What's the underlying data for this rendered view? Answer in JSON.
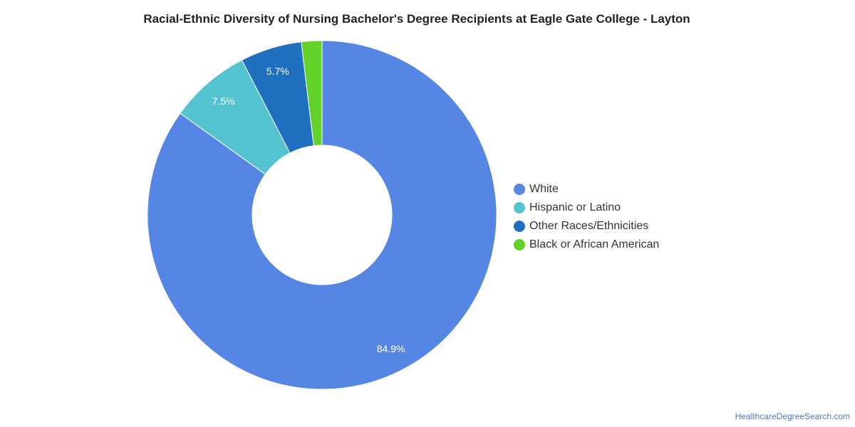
{
  "chart_data": {
    "type": "pie",
    "title": "Racial-Ethnic Diversity of Nursing Bachelor's Degree Recipients at Eagle Gate College - Layton",
    "categories": [
      "White",
      "Hispanic or Latino",
      "Other Races/Ethnicities",
      "Black or African American"
    ],
    "values": [
      84.9,
      7.5,
      5.7,
      1.9
    ],
    "data_labels": [
      "84.9%",
      "7.5%",
      "5.7%",
      ""
    ],
    "colors": [
      "#5586e3",
      "#52c3cf",
      "#1f70bf",
      "#62d12a"
    ],
    "donut": true,
    "legend_position": "right"
  },
  "watermark": "HealthcareDegreeSearch.com"
}
